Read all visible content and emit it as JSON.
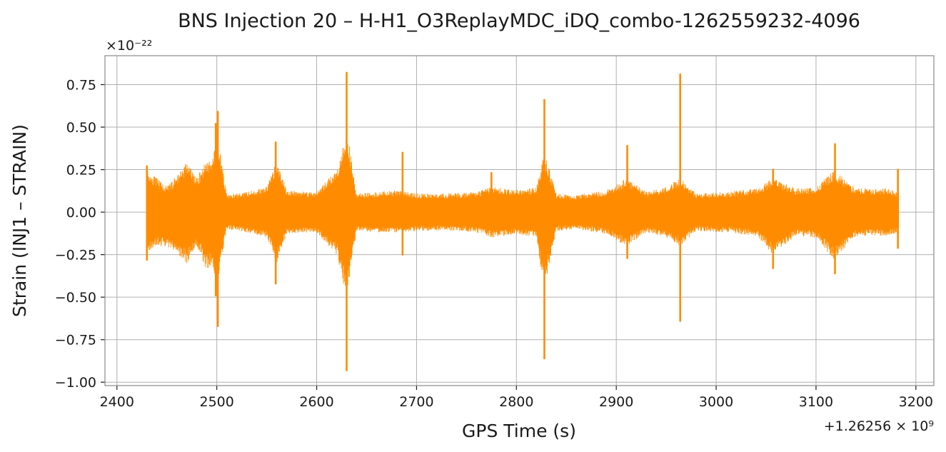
{
  "chart_data": {
    "type": "line",
    "title": "BNS Injection 20 – H-H1_O3ReplayMDC_iDQ_combo-1262559232-4096",
    "xlabel": "GPS Time (s)",
    "ylabel": "Strain (INJ1 – STRAIN)",
    "x_offset_label": "+1.26256 × 10⁹",
    "y_scale_label": "×10⁻²²",
    "xlim": [
      2388,
      3218
    ],
    "ylim": [
      -1.02,
      0.92
    ],
    "x_ticks": [
      2400,
      2500,
      2600,
      2700,
      2800,
      2900,
      3000,
      3100,
      3200
    ],
    "x_tick_labels": [
      "2400",
      "2500",
      "2600",
      "2700",
      "2800",
      "2900",
      "3000",
      "3100",
      "3200"
    ],
    "y_ticks": [
      0.75,
      0.5,
      0.25,
      0.0,
      -0.25,
      -0.5,
      -0.75,
      -1.0
    ],
    "y_tick_labels": [
      "0.75",
      "0.50",
      "0.25",
      "0.00",
      "−0.25",
      "−0.50",
      "−0.75",
      "−1.00"
    ],
    "grid": true,
    "series": [
      {
        "color": "#ff8c00",
        "envelope": {
          "x": [
            2430,
            2440,
            2450,
            2460,
            2470,
            2480,
            2490,
            2495,
            2500,
            2510,
            2530,
            2550,
            2560,
            2570,
            2600,
            2620,
            2630,
            2640,
            2660,
            2685,
            2700,
            2730,
            2760,
            2775,
            2800,
            2820,
            2828,
            2840,
            2860,
            2890,
            2910,
            2930,
            2950,
            2964,
            2980,
            3010,
            3040,
            3057,
            3080,
            3100,
            3118,
            3140,
            3170,
            3183
          ],
          "upper": [
            0.25,
            0.2,
            0.15,
            0.22,
            0.3,
            0.2,
            0.32,
            0.3,
            0.5,
            0.1,
            0.12,
            0.15,
            0.3,
            0.13,
            0.12,
            0.25,
            0.5,
            0.11,
            0.12,
            0.13,
            0.11,
            0.11,
            0.12,
            0.15,
            0.13,
            0.15,
            0.35,
            0.11,
            0.1,
            0.13,
            0.2,
            0.12,
            0.15,
            0.2,
            0.11,
            0.12,
            0.14,
            0.2,
            0.14,
            0.15,
            0.25,
            0.14,
            0.14,
            0.12
          ],
          "lower": [
            -0.25,
            -0.2,
            -0.2,
            -0.25,
            -0.3,
            -0.2,
            -0.35,
            -0.3,
            -0.45,
            -0.1,
            -0.12,
            -0.15,
            -0.3,
            -0.13,
            -0.12,
            -0.25,
            -0.5,
            -0.11,
            -0.12,
            -0.12,
            -0.11,
            -0.11,
            -0.12,
            -0.15,
            -0.13,
            -0.15,
            -0.45,
            -0.11,
            -0.1,
            -0.13,
            -0.2,
            -0.12,
            -0.15,
            -0.2,
            -0.11,
            -0.12,
            -0.14,
            -0.25,
            -0.14,
            -0.15,
            -0.28,
            -0.14,
            -0.14,
            -0.12
          ]
        },
        "spikes": [
          {
            "x": 2430,
            "max": 0.27,
            "min": -0.28
          },
          {
            "x": 2499,
            "max": 0.52,
            "min": -0.49
          },
          {
            "x": 2501,
            "max": 0.59,
            "min": -0.67
          },
          {
            "x": 2559,
            "max": 0.41,
            "min": -0.42
          },
          {
            "x": 2630,
            "max": 0.82,
            "min": -0.93
          },
          {
            "x": 2686,
            "max": 0.35,
            "min": -0.25
          },
          {
            "x": 2775,
            "max": 0.23,
            "min": -0.1
          },
          {
            "x": 2828,
            "max": 0.66,
            "min": -0.86
          },
          {
            "x": 2911,
            "max": 0.39,
            "min": -0.27
          },
          {
            "x": 2964,
            "max": 0.81,
            "min": -0.64
          },
          {
            "x": 3057,
            "max": 0.25,
            "min": -0.33
          },
          {
            "x": 3119,
            "max": 0.4,
            "min": -0.36
          },
          {
            "x": 3182,
            "max": 0.25,
            "min": -0.21
          }
        ]
      }
    ]
  }
}
